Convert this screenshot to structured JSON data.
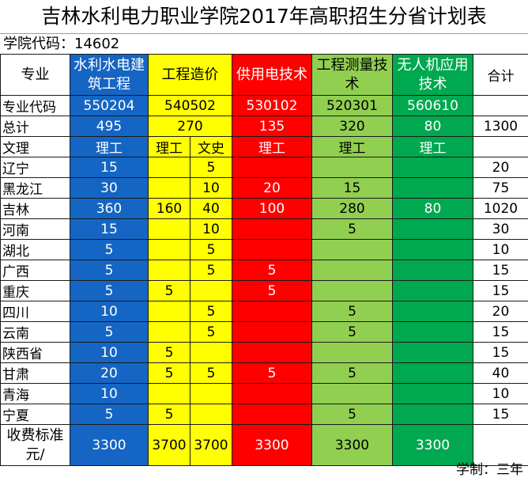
{
  "title": "吉林水利电力职业学院2017年高职招生分省计划表",
  "school_code_label": "学院代码：14602",
  "colors": {
    "blue": "#1565c4",
    "yellow": "#ffff00",
    "red": "#ff0000",
    "lgreen": "#91cf50",
    "dgreen": "#00a84f"
  },
  "header": {
    "major_label": "专业",
    "majors": [
      "水利水电建筑工程",
      "工程造价",
      "供用电技术",
      "工程测量技术",
      "无人机应用技术"
    ],
    "total_label": "合计"
  },
  "code_row": {
    "label": "专业代码",
    "codes": [
      "550204",
      "540502",
      "530102",
      "520301",
      "560610"
    ],
    "total": ""
  },
  "sum_row": {
    "label": "总计",
    "values": [
      "495",
      "270",
      "135",
      "320",
      "80"
    ],
    "total": "1300"
  },
  "subject_row": {
    "label": "文理",
    "m1": "理工",
    "m2a": "理工",
    "m2b": "文史",
    "m3": "理工",
    "m4": "理工",
    "m5": "理工",
    "total": ""
  },
  "provinces": [
    {
      "name": "辽宁",
      "m1": "15",
      "m2a": "",
      "m2b": "5",
      "m3": "",
      "m4": "",
      "m5": "",
      "total": "20"
    },
    {
      "name": "黑龙江",
      "m1": "30",
      "m2a": "",
      "m2b": "10",
      "m3": "20",
      "m4": "15",
      "m5": "",
      "total": "75"
    },
    {
      "name": "吉林",
      "m1": "360",
      "m2a": "160",
      "m2b": "40",
      "m3": "100",
      "m4": "280",
      "m5": "80",
      "total": "1020"
    },
    {
      "name": "河南",
      "m1": "15",
      "m2a": "",
      "m2b": "10",
      "m3": "",
      "m4": "5",
      "m5": "",
      "total": "30"
    },
    {
      "name": "湖北",
      "m1": "5",
      "m2a": "",
      "m2b": "5",
      "m3": "",
      "m4": "",
      "m5": "",
      "total": "10"
    },
    {
      "name": "广西",
      "m1": "5",
      "m2a": "",
      "m2b": "5",
      "m3": "5",
      "m4": "",
      "m5": "",
      "total": "15"
    },
    {
      "name": "重庆",
      "m1": "5",
      "m2a": "5",
      "m2b": "",
      "m3": "5",
      "m4": "",
      "m5": "",
      "total": "15"
    },
    {
      "name": "四川",
      "m1": "10",
      "m2a": "",
      "m2b": "5",
      "m3": "",
      "m4": "5",
      "m5": "",
      "total": "20"
    },
    {
      "name": "云南",
      "m1": "5",
      "m2a": "",
      "m2b": "5",
      "m3": "",
      "m4": "5",
      "m5": "",
      "total": "15"
    },
    {
      "name": "陕西省",
      "m1": "10",
      "m2a": "5",
      "m2b": "",
      "m3": "",
      "m4": "",
      "m5": "",
      "total": "15"
    },
    {
      "name": "甘肃",
      "m1": "20",
      "m2a": "5",
      "m2b": "5",
      "m3": "5",
      "m4": "5",
      "m5": "",
      "total": "40"
    },
    {
      "name": "青海",
      "m1": "10",
      "m2a": "",
      "m2b": "",
      "m3": "",
      "m4": "",
      "m5": "",
      "total": "10"
    },
    {
      "name": "宁夏",
      "m1": "5",
      "m2a": "5",
      "m2b": "",
      "m3": "",
      "m4": "5",
      "m5": "",
      "total": "15"
    }
  ],
  "fee_row": {
    "label": "收费标准元/",
    "m1": "3300",
    "m2a": "3700",
    "m2b": "3700",
    "m3": "3300",
    "m4": "3300",
    "m5": "3300",
    "total": ""
  },
  "footer": "学制：三年"
}
